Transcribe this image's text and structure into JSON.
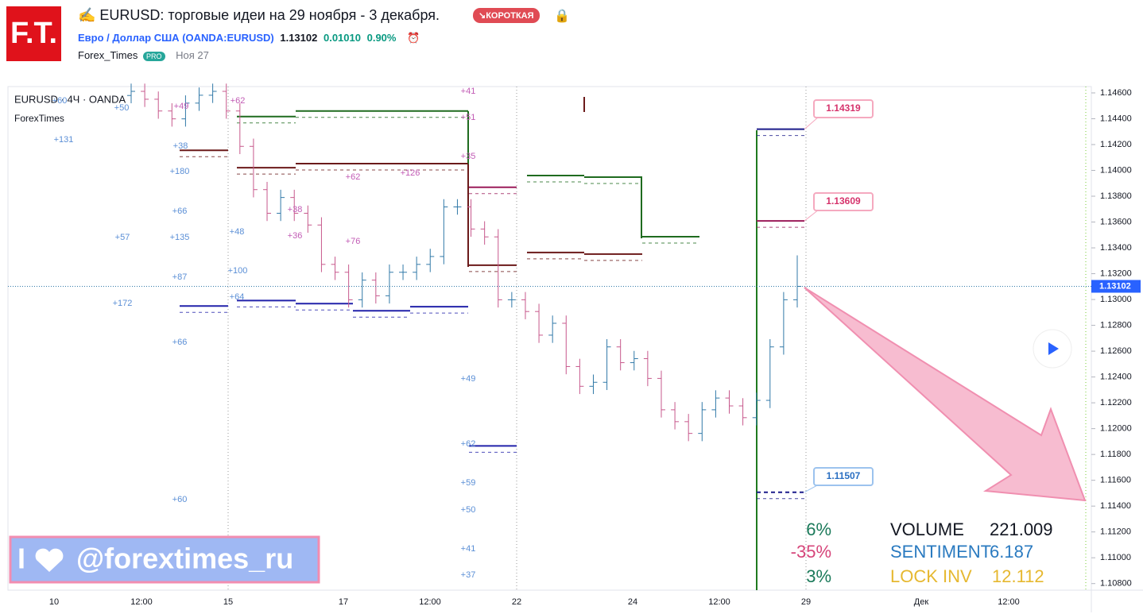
{
  "header": {
    "logo": "F.T.",
    "title": "EURUSD: торговые идеи на 29 ноября - 3 декабря.",
    "badge": "КОРОТКАЯ",
    "instrument": "Евро / Доллар США",
    "symbol": "(OANDA:EURUSD)",
    "price": "1.13102",
    "change": "0.01010",
    "change_pct": "0.90%",
    "author": "Forex_Times",
    "author_badge": "PRO",
    "date": "Ноя 27"
  },
  "chart_data": {
    "type": "ohlc",
    "legend": "EURUSD · 4Ч · OANDA",
    "source": "ForexTimes",
    "open": [
      1.1458,
      1.14612,
      1.14551,
      1.1446,
      1.14399,
      1.14521,
      1.14582,
      1.14612,
      1.1446,
      1.14186,
      1.13851,
      1.13668,
      1.1379,
      1.13668,
      1.13577,
      1.13272,
      1.13211,
      1.12998,
      1.1315,
      1.13029,
      1.13211,
      1.13211,
      1.13272,
      1.13333,
      1.13717,
      1.13717,
      1.13546,
      1.13485,
      1.12998,
      1.12998,
      1.12907,
      1.12724,
      1.12816,
      1.12481,
      1.12328,
      1.12359,
      1.12633,
      1.12511,
      1.12542,
      1.12389,
      1.12146,
      1.12054,
      1.11963,
      1.12146,
      1.12237,
      1.12176,
      1.12085,
      1.12219,
      1.12633,
      1.12998
    ],
    "high": [
      1.14672,
      1.14672,
      1.14611,
      1.1452,
      1.14581,
      1.14642,
      1.14672,
      1.14672,
      1.1452,
      1.14246,
      1.13911,
      1.1385,
      1.1385,
      1.13728,
      1.13637,
      1.13332,
      1.13271,
      1.1321,
      1.1321,
      1.13271,
      1.13271,
      1.13332,
      1.13393,
      1.13777,
      1.13777,
      1.13777,
      1.13606,
      1.13545,
      1.13058,
      1.13058,
      1.12967,
      1.12876,
      1.12876,
      1.12541,
      1.12419,
      1.12693,
      1.12693,
      1.12602,
      1.12602,
      1.12449,
      1.12206,
      1.12114,
      1.12206,
      1.12297,
      1.12297,
      1.12236,
      1.12279,
      1.12693,
      1.13058,
      1.13342
    ],
    "low": [
      1.1452,
      1.14491,
      1.144,
      1.14339,
      1.14339,
      1.14461,
      1.14522,
      1.144,
      1.14126,
      1.13791,
      1.13608,
      1.13608,
      1.13608,
      1.13517,
      1.13212,
      1.13151,
      1.12938,
      1.12938,
      1.12969,
      1.12969,
      1.13151,
      1.13151,
      1.13212,
      1.13273,
      1.13657,
      1.13486,
      1.13425,
      1.12938,
      1.12938,
      1.12847,
      1.12664,
      1.12664,
      1.12421,
      1.12268,
      1.12268,
      1.12299,
      1.12451,
      1.12451,
      1.12329,
      1.12086,
      1.11994,
      1.11903,
      1.11903,
      1.12086,
      1.12116,
      1.12025,
      1.12025,
      1.12159,
      1.12573,
      1.12938
    ],
    "close": [
      1.14612,
      1.14551,
      1.1446,
      1.14399,
      1.14521,
      1.14582,
      1.14612,
      1.1446,
      1.14186,
      1.13851,
      1.13668,
      1.1379,
      1.13668,
      1.13577,
      1.13272,
      1.13211,
      1.12998,
      1.1315,
      1.13029,
      1.13211,
      1.13211,
      1.13272,
      1.13333,
      1.13717,
      1.13717,
      1.13546,
      1.13485,
      1.12998,
      1.12998,
      1.12907,
      1.12724,
      1.12816,
      1.12481,
      1.12328,
      1.12359,
      1.12633,
      1.12511,
      1.12542,
      1.12389,
      1.12146,
      1.12054,
      1.11963,
      1.12146,
      1.12237,
      1.12176,
      1.12085,
      1.12219,
      1.12633,
      1.12998,
      1.13102
    ],
    "up_color": "#3179a8",
    "down_color": "#c7588c",
    "ylim": [
      1.10749,
      1.14649
    ],
    "yticks": [
      {
        "value": 1.146,
        "label": "1.14600"
      },
      {
        "value": 1.144,
        "label": "1.14400"
      },
      {
        "value": 1.142,
        "label": "1.14200"
      },
      {
        "value": 1.14,
        "label": "1.14000"
      },
      {
        "value": 1.138,
        "label": "1.13800"
      },
      {
        "value": 1.136,
        "label": "1.13600"
      },
      {
        "value": 1.134,
        "label": "1.13400"
      },
      {
        "value": 1.132,
        "label": "1.13200"
      },
      {
        "value": 1.13,
        "label": "1.13000"
      },
      {
        "value": 1.128,
        "label": "1.12800"
      },
      {
        "value": 1.126,
        "label": "1.12600"
      },
      {
        "value": 1.124,
        "label": "1.12400"
      },
      {
        "value": 1.122,
        "label": "1.12200"
      },
      {
        "value": 1.12,
        "label": "1.12000"
      },
      {
        "value": 1.118,
        "label": "1.11800"
      },
      {
        "value": 1.116,
        "label": "1.11600"
      },
      {
        "value": 1.114,
        "label": "1.11400"
      },
      {
        "value": 1.112,
        "label": "1.11200"
      },
      {
        "value": 1.11,
        "label": "1.11000"
      },
      {
        "value": 1.108,
        "label": "1.10800"
      }
    ],
    "x_labels": [
      "10",
      "12:00",
      "15",
      "17",
      "12:00",
      "22",
      "24",
      "12:00",
      "29",
      "Дек",
      "12:00"
    ],
    "levels": [
      {
        "value": 1.14155,
        "color": "#6b1a1a"
      },
      {
        "value": 1.14021,
        "color": "#6b1a1a"
      },
      {
        "value": 1.14052,
        "color": "#6b1a1a"
      },
      {
        "value": 1.14417,
        "color": "#1f6b1f"
      },
      {
        "value": 1.1446,
        "color": "#1f6b1f"
      },
      {
        "value": 1.13266,
        "color": "#6b1a1a"
      },
      {
        "value": 1.13869,
        "color": "#9b1b5a"
      },
      {
        "value": 1.13364,
        "color": "#6b1a1a"
      },
      {
        "value": 1.13352,
        "color": "#6b1a1a"
      },
      {
        "value": 1.1396,
        "color": "#1f6b1f"
      },
      {
        "value": 1.13948,
        "color": "#1f6b1f"
      },
      {
        "value": 1.13486,
        "color": "#1f6b1f"
      },
      {
        "value": 1.1295,
        "color": "#2222aa"
      },
      {
        "value": 1.12992,
        "color": "#2222aa"
      },
      {
        "value": 1.12968,
        "color": "#2222aa"
      },
      {
        "value": 1.12913,
        "color": "#2222aa"
      },
      {
        "value": 1.12944,
        "color": "#2222aa"
      },
      {
        "value": 1.11866,
        "color": "#2222aa"
      },
      {
        "value": 1.14319,
        "color": "#1a1a8a"
      },
      {
        "value": 1.13609,
        "color": "#9b1b5a"
      },
      {
        "value": 1.11507,
        "color": "#1a1a8a"
      }
    ],
    "annotations": [
      "+60",
      "+50",
      "+49",
      "+131",
      "+38",
      "+180",
      "+66",
      "+57",
      "+135",
      "+87",
      "+172",
      "+66",
      "+60",
      "+62",
      "+48",
      "+100",
      "+64",
      "+62",
      "+126",
      "+38",
      "+36",
      "+76",
      "+41",
      "+51",
      "+35",
      "+49",
      "+62",
      "+59",
      "+50",
      "+41",
      "+37"
    ],
    "stats": {
      "pct": [
        "6%",
        "-35%",
        "3%"
      ],
      "names": [
        "VOLUME",
        "SENTIMENT",
        "LOCK INV"
      ],
      "values": [
        "221.009",
        "6.187",
        "12.112"
      ]
    },
    "watermark": "@forextimes_ru",
    "watermark_prefix": "I"
  }
}
